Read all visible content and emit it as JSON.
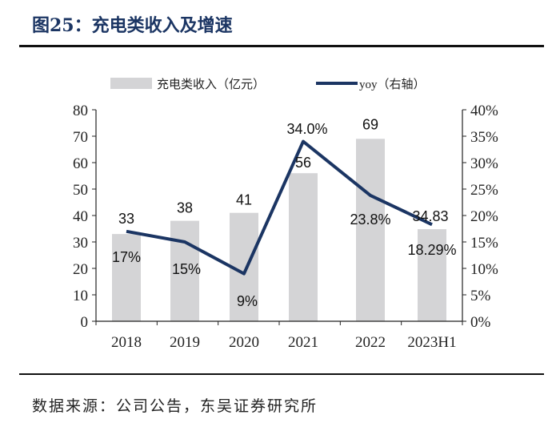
{
  "title": "图25：充电类收入及增速",
  "source": "数据来源：公司公告，东吴证券研究所",
  "chart_data": {
    "type": "bar+line",
    "categories": [
      "2018",
      "2019",
      "2020",
      "2021",
      "2022",
      "2023H1"
    ],
    "series": [
      {
        "name": "充电类收入（亿元）",
        "type": "bar",
        "axis": "left",
        "values": [
          33,
          38,
          41,
          56,
          69,
          34.83
        ],
        "labels": [
          "33",
          "38",
          "41",
          "56",
          "69",
          "34.83"
        ],
        "color": "#d4d4d6"
      },
      {
        "name": "yoy（右轴）",
        "type": "line",
        "axis": "right",
        "values": [
          17,
          15,
          9,
          34.0,
          23.8,
          18.29
        ],
        "labels": [
          "17%",
          "15%",
          "9%",
          "34.0%",
          "23.8%",
          "18.29%"
        ],
        "color": "#1b3563"
      }
    ],
    "ylim_left": [
      0,
      80
    ],
    "yticks_left": [
      "0",
      "10",
      "20",
      "30",
      "40",
      "50",
      "60",
      "70",
      "80"
    ],
    "ylim_right": [
      0,
      40
    ],
    "yticks_right": [
      "0%",
      "5%",
      "10%",
      "15%",
      "20%",
      "25%",
      "30%",
      "35%",
      "40%"
    ],
    "legend": "top",
    "grid": false
  }
}
